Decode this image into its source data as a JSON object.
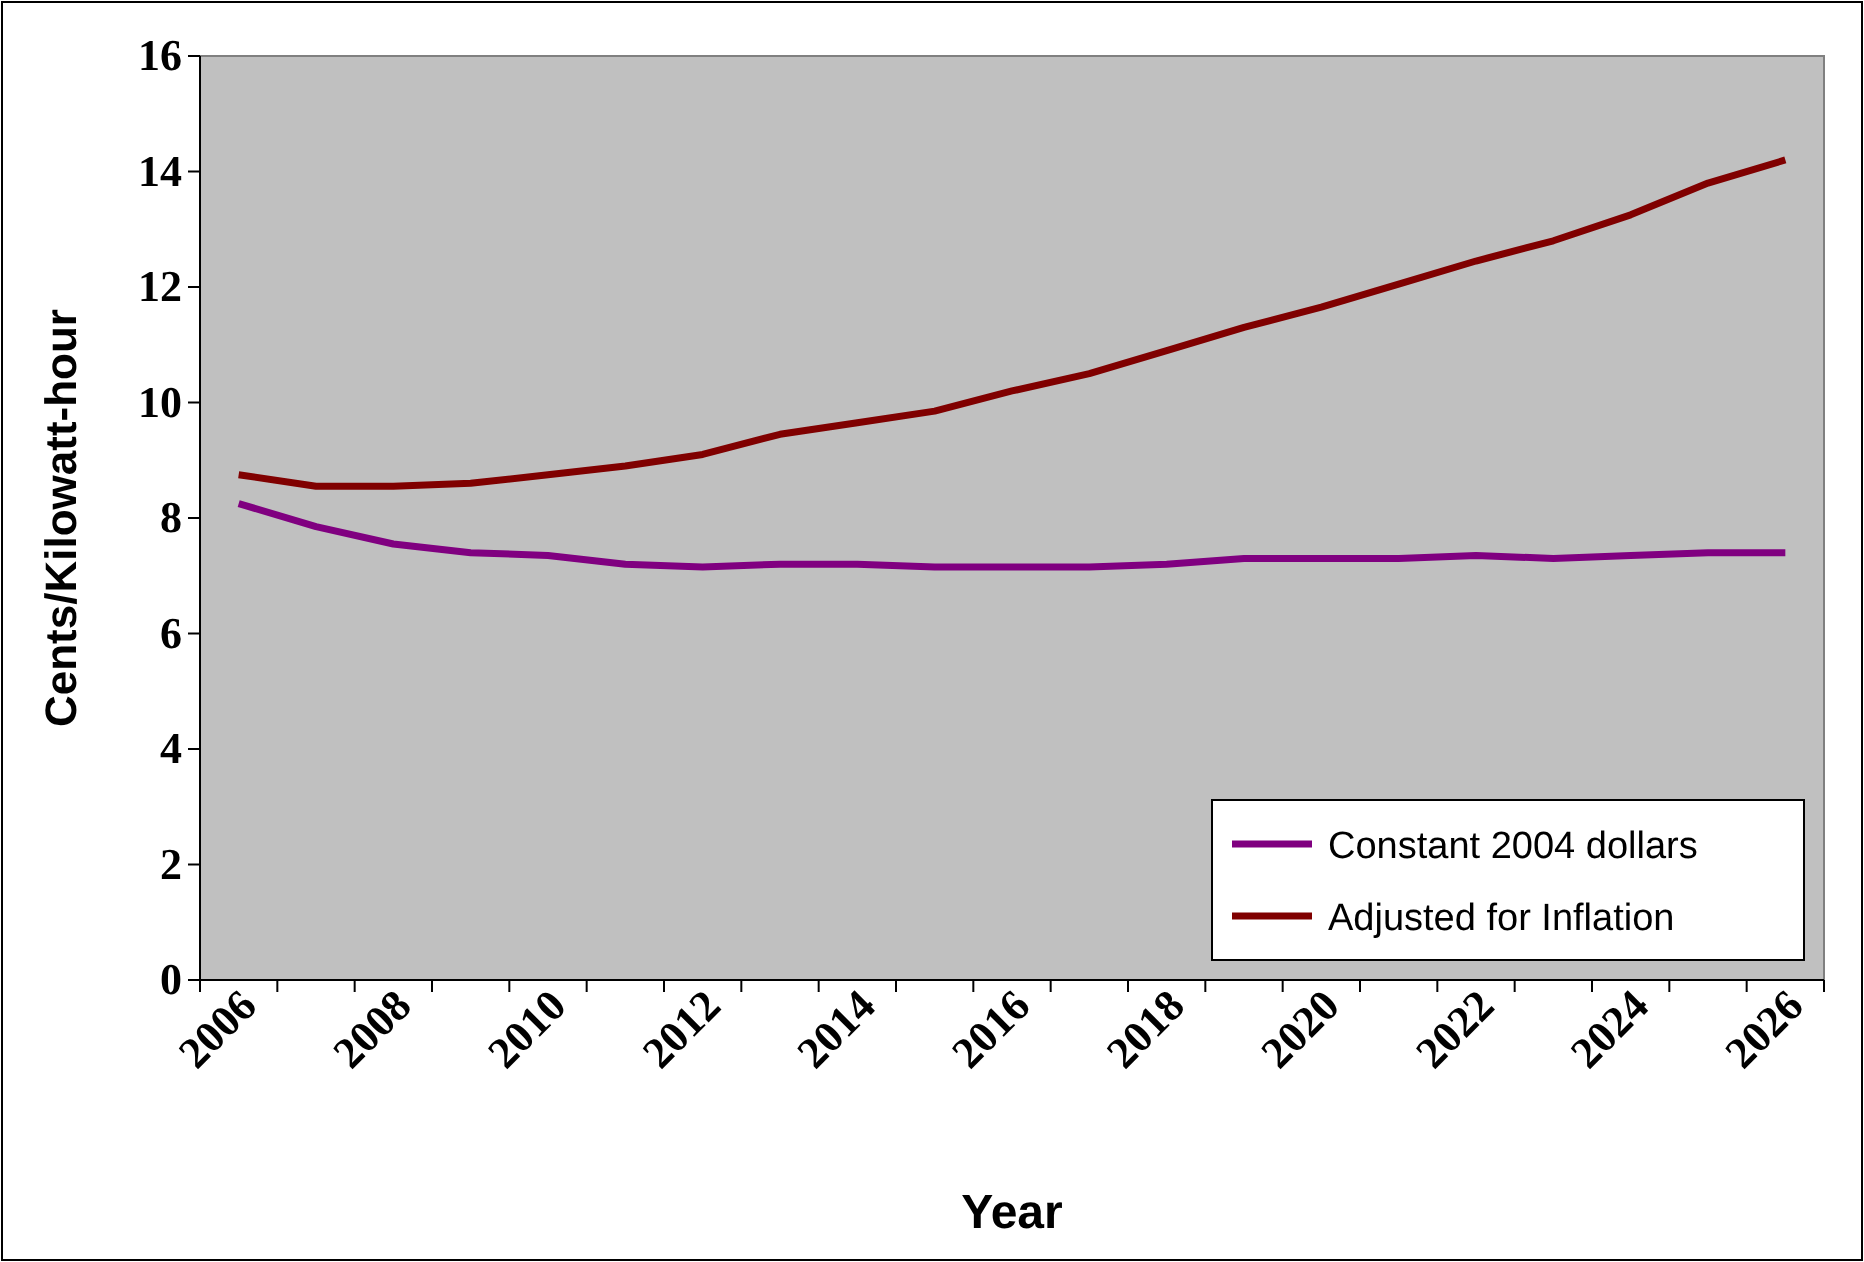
{
  "chart_data": {
    "type": "line",
    "xlabel": "Year",
    "ylabel": "Cents/Kilowatt-hour",
    "categories": [
      "2006",
      null,
      "2008",
      null,
      "2010",
      null,
      "2012",
      null,
      "2014",
      null,
      "2016",
      null,
      "2018",
      null,
      "2020",
      null,
      "2022",
      null,
      "2024",
      null,
      "2026"
    ],
    "series": [
      {
        "name": "Constant 2004 dollars",
        "color": "#800080",
        "values": [
          8.25,
          7.85,
          7.55,
          7.4,
          7.35,
          7.2,
          7.15,
          7.2,
          7.2,
          7.15,
          7.15,
          7.15,
          7.2,
          7.3,
          7.3,
          7.3,
          7.35,
          7.3,
          7.35,
          7.4,
          7.4
        ]
      },
      {
        "name": "Adjusted for Inflation",
        "color": "#800000",
        "values": [
          8.75,
          8.55,
          8.55,
          8.6,
          8.75,
          8.9,
          9.1,
          9.45,
          9.65,
          9.85,
          10.2,
          10.5,
          10.9,
          11.3,
          11.65,
          12.05,
          12.45,
          12.8,
          13.25,
          13.8,
          14.2
        ]
      }
    ],
    "ylim": [
      0,
      16
    ],
    "yticks": [
      0,
      2,
      4,
      6,
      8,
      10,
      12,
      14,
      16
    ],
    "grid": false,
    "legend": "bottom right",
    "marker": "none",
    "line_style": "solid"
  }
}
